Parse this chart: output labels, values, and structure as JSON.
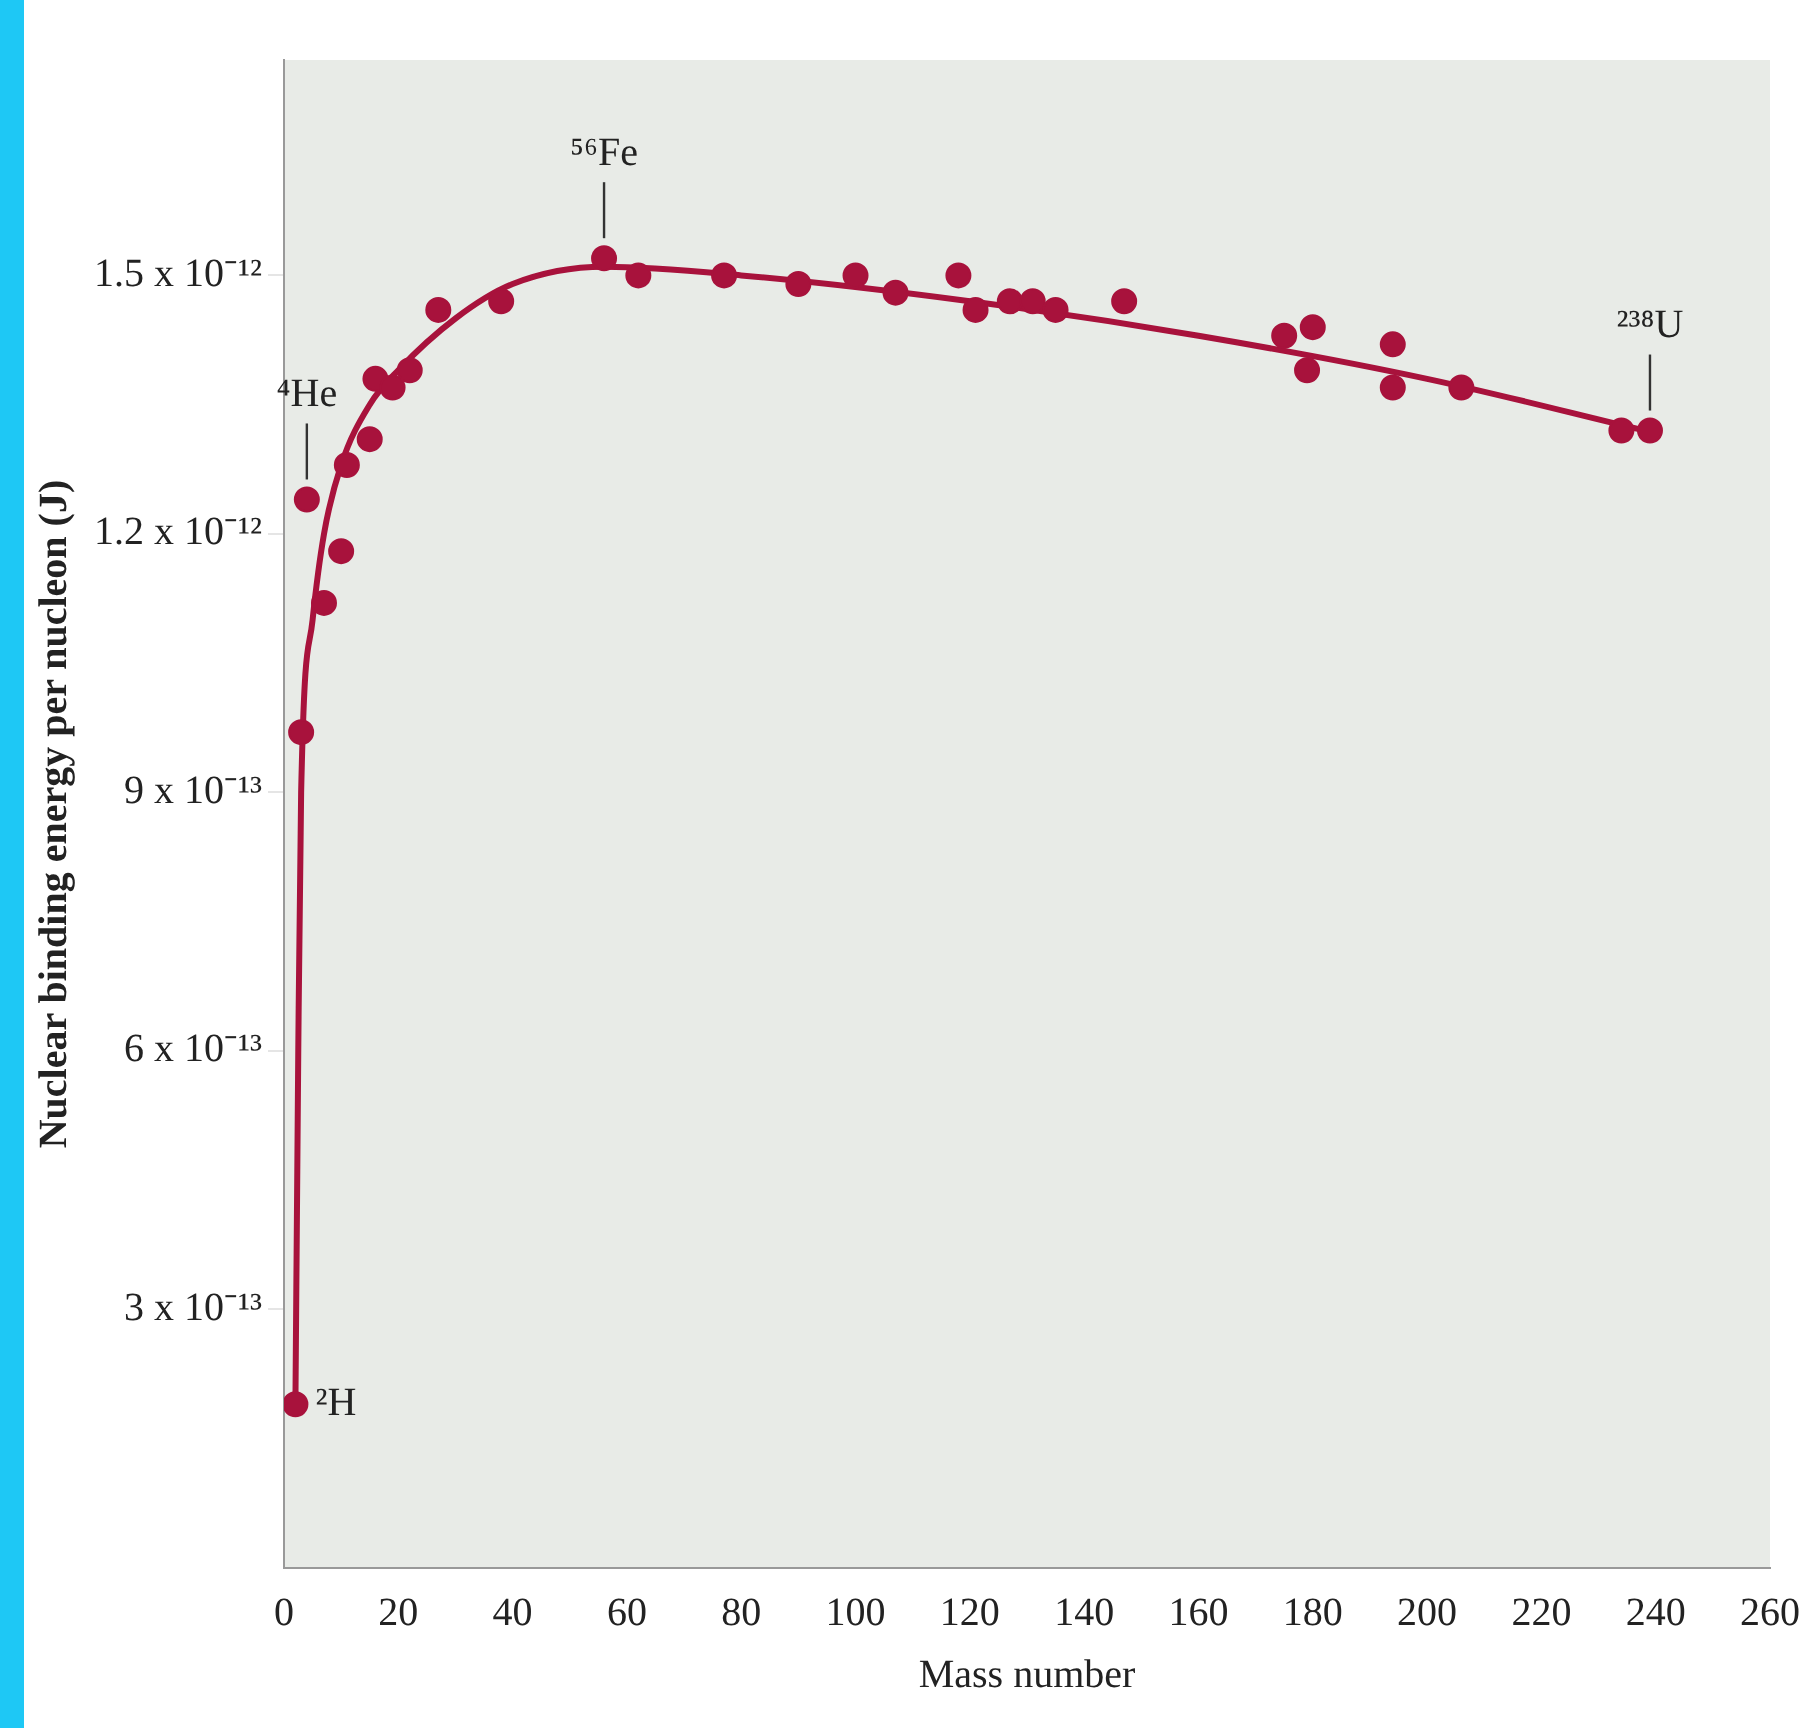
{
  "chart_data": {
    "type": "scatter",
    "xlabel": "Mass number",
    "ylabel": "Nuclear binding energy per nucleon (J)",
    "xlim": [
      0,
      260
    ],
    "xticks": [
      0,
      20,
      40,
      60,
      80,
      100,
      120,
      140,
      160,
      180,
      200,
      220,
      240,
      260
    ],
    "ylim": [
      0,
      1.75e-12
    ],
    "yticks": [
      {
        "value": 3e-13,
        "label": "3 x 10⁻¹³"
      },
      {
        "value": 6e-13,
        "label": "6 x 10⁻¹³"
      },
      {
        "value": 9e-13,
        "label": "9 x 10⁻¹³"
      },
      {
        "value": 1.2e-12,
        "label": "1.2 x 10⁻¹²"
      },
      {
        "value": 1.5e-12,
        "label": "1.5 x 10⁻¹²"
      }
    ],
    "grid": false,
    "legend": false,
    "marker": "circle",
    "line_style": "solid",
    "series": [
      {
        "type": "line",
        "marker": "none",
        "color": "#a8123c",
        "x": [
          2,
          2.5,
          3,
          5,
          7,
          10,
          15,
          20,
          30,
          40,
          56,
          80,
          120,
          160,
          200,
          238
        ],
        "values": [
          1.9e-13,
          6e-13,
          9e-13,
          1.1e-12,
          1.2e-12,
          1.28e-12,
          1.35e-12,
          1.39e-12,
          1.45e-12,
          1.49e-12,
          1.51e-12,
          1.5e-12,
          1.47e-12,
          1.43e-12,
          1.38e-12,
          1.32e-12
        ]
      },
      {
        "color": "#a8123c",
        "x": [
          2,
          3,
          4,
          7,
          10,
          11,
          15,
          16,
          19,
          22,
          27,
          38,
          56,
          62,
          77,
          90,
          100,
          107,
          118,
          121,
          127,
          131,
          135,
          147,
          175,
          179,
          180,
          194,
          194,
          206,
          234,
          239
        ],
        "values": [
          1.9e-13,
          9.7e-13,
          1.24e-12,
          1.12e-12,
          1.18e-12,
          1.28e-12,
          1.31e-12,
          1.38e-12,
          1.37e-12,
          1.39e-12,
          1.46e-12,
          1.47e-12,
          1.52e-12,
          1.5e-12,
          1.5e-12,
          1.49e-12,
          1.5e-12,
          1.48e-12,
          1.5e-12,
          1.46e-12,
          1.47e-12,
          1.47e-12,
          1.46e-12,
          1.47e-12,
          1.43e-12,
          1.39e-12,
          1.44e-12,
          1.42e-12,
          1.37e-12,
          1.37e-12,
          1.32e-12,
          1.32e-12
        ]
      }
    ],
    "annotations": [
      {
        "text": "²H",
        "x": 2,
        "y": 1.9e-13
      },
      {
        "text": "⁴He",
        "x": 4,
        "y": 1.24e-12
      },
      {
        "text": "⁵⁶Fe",
        "x": 56,
        "y": 1.52e-12
      },
      {
        "text": "²³⁸U",
        "x": 239,
        "y": 1.32e-12
      }
    ]
  }
}
